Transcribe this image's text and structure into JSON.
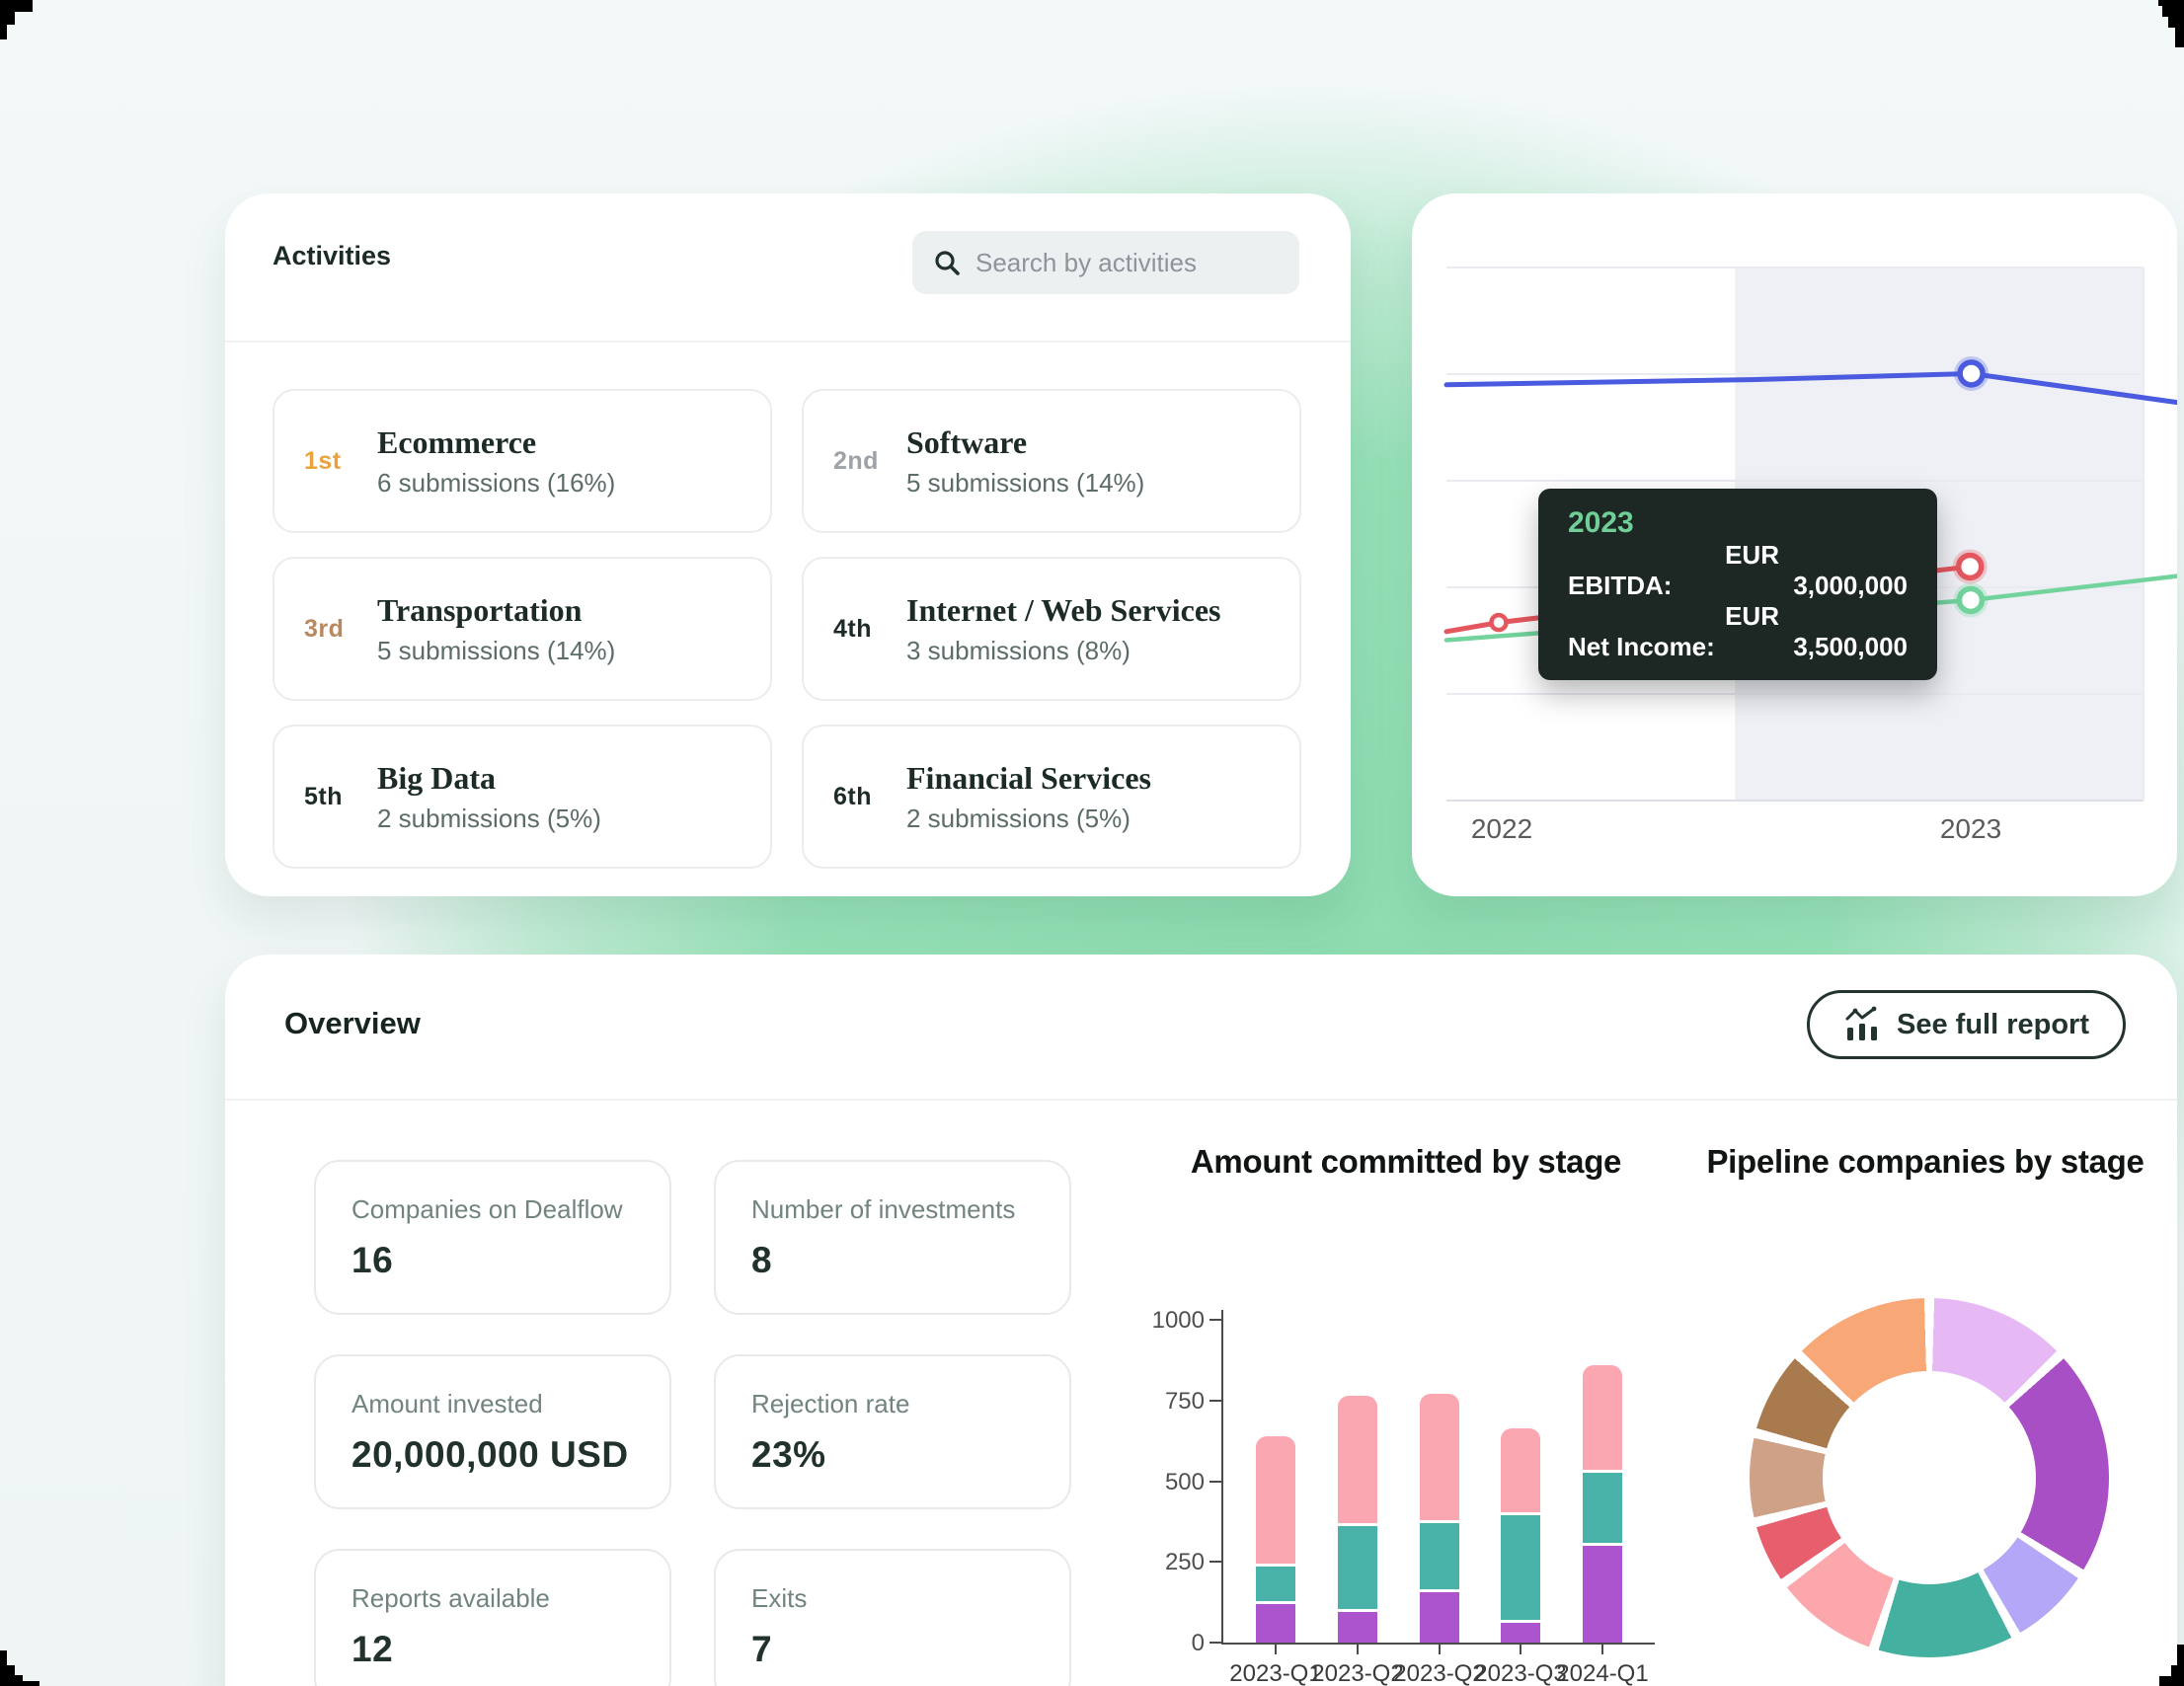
{
  "activities": {
    "title": "Activities",
    "search_placeholder": "Search by activities",
    "items": [
      {
        "rank": "1st",
        "rank_color": "#E8A33D",
        "name": "Ecommerce",
        "sub": "6 submissions (16%)"
      },
      {
        "rank": "2nd",
        "rank_color": "#9CA2A7",
        "name": "Software",
        "sub": "5 submissions (14%)"
      },
      {
        "rank": "3rd",
        "rank_color": "#B8895F",
        "name": "Transportation",
        "sub": "5 submissions (14%)"
      },
      {
        "rank": "4th",
        "rank_color": "#1D2B28",
        "name": "Internet / Web Services",
        "sub": "3 submissions (8%)"
      },
      {
        "rank": "5th",
        "rank_color": "#1D2B28",
        "name": "Big Data",
        "sub": "2 submissions (5%)"
      },
      {
        "rank": "6th",
        "rank_color": "#1D2B28",
        "name": "Financial Services",
        "sub": "2 submissions (5%)"
      }
    ]
  },
  "overview": {
    "title": "Overview",
    "report_button_label": "See full report",
    "stats": [
      {
        "label": "Companies on Dealflow",
        "value": "16"
      },
      {
        "label": "Number of investments",
        "value": "8"
      },
      {
        "label": "Amount invested",
        "value": "20,000,000 USD"
      },
      {
        "label": "Rejection rate",
        "value": "23%"
      },
      {
        "label": "Reports available",
        "value": "12"
      },
      {
        "label": "Exits",
        "value": "7"
      }
    ]
  },
  "chart_data": [
    {
      "id": "financials",
      "type": "line",
      "x_labels": [
        "2022",
        "2023"
      ],
      "highlighted_x": "2023",
      "grid": true,
      "tooltip": {
        "year": "2023",
        "rows": [
          {
            "label": "EBITDA:",
            "currency": "EUR",
            "value": "3,000,000"
          },
          {
            "label": "Net Income:",
            "currency": "EUR",
            "value": "3,500,000"
          }
        ]
      },
      "note": "Only the 2023 tooltip values are labeled; series shapes below are read from the plot (x,y as fractions of plot width/height from bottom).",
      "series": [
        {
          "name": "unlabeled-blue-series",
          "color": "#4a5be0",
          "width": 5,
          "shape": [
            [
              0,
              0.78
            ],
            [
              0.45,
              0.79
            ],
            [
              0.753,
              0.801
            ],
            [
              1.048,
              0.747
            ]
          ],
          "markers": [
            {
              "x": 0.753,
              "y": 0.801,
              "r": 11.5
            }
          ]
        },
        {
          "name": "EBITDA",
          "color": "#e4575f",
          "width": 5,
          "value_2023": 3000000,
          "shape": [
            [
              0,
              0.317
            ],
            [
              0.075,
              0.334
            ],
            [
              0.751,
              0.439
            ]
          ],
          "markers": [
            {
              "x": 0.075,
              "y": 0.334,
              "r": 7.5
            },
            {
              "x": 0.751,
              "y": 0.439,
              "r": 11.5
            }
          ]
        },
        {
          "name": "Net Income",
          "color": "#72d39c",
          "width": 4.5,
          "value_2023": 3500000,
          "shape": [
            [
              0,
              0.301
            ],
            [
              0.752,
              0.376
            ],
            [
              1.048,
              0.421
            ]
          ],
          "markers": [
            {
              "x": 0.752,
              "y": 0.376,
              "r": 11.5
            }
          ]
        }
      ]
    },
    {
      "id": "committed",
      "type": "bar",
      "stacked": true,
      "title": "Amount committed by stage",
      "categories": [
        "2023-Q1",
        "2023-Q2",
        "2023-Q2",
        "2023-Q3",
        "2024-Q1"
      ],
      "series": [
        {
          "name": "bottom-segment (purple)",
          "color": "#AB54CD",
          "values": [
            120,
            95,
            155,
            60,
            300
          ]
        },
        {
          "name": "middle-segment (teal)",
          "color": "#4AB3A9",
          "values": [
            115,
            265,
            215,
            335,
            225
          ]
        },
        {
          "name": "top-segment (pink)",
          "color": "#FBA7B2",
          "values": [
            405,
            405,
            400,
            270,
            335
          ]
        }
      ],
      "ylim": [
        0,
        1000
      ],
      "y_ticks": [
        0,
        250,
        500,
        750,
        1000
      ],
      "legend": "none",
      "note": "Segment values estimated from axis gridlines (no data labels shown)."
    },
    {
      "id": "pipeline",
      "type": "pie",
      "subtype": "donut",
      "title": "Pipeline companies by stage",
      "legend": "none",
      "note": "No labels shown; percentages estimated from arc angles, clockwise from 12 o'clock.",
      "segments": [
        {
          "color_name": "lilac",
          "color": "#E6B9F5",
          "percent": 13
        },
        {
          "color_name": "purple",
          "color": "#A94FC6",
          "percent": 21
        },
        {
          "color_name": "periwinkle",
          "color": "#B4A7F7",
          "percent": 8
        },
        {
          "color_name": "teal",
          "color": "#44B1A0",
          "percent": 13
        },
        {
          "color_name": "pink",
          "color": "#FBA7AB",
          "percent": 10
        },
        {
          "color_name": "red",
          "color": "#E75F6D",
          "percent": 6
        },
        {
          "color_name": "tan",
          "color": "#CFA287",
          "percent": 8
        },
        {
          "color_name": "brown",
          "color": "#A97A4E",
          "percent": 8
        },
        {
          "color_name": "orange",
          "color": "#F8A877",
          "percent": 13
        }
      ]
    }
  ]
}
